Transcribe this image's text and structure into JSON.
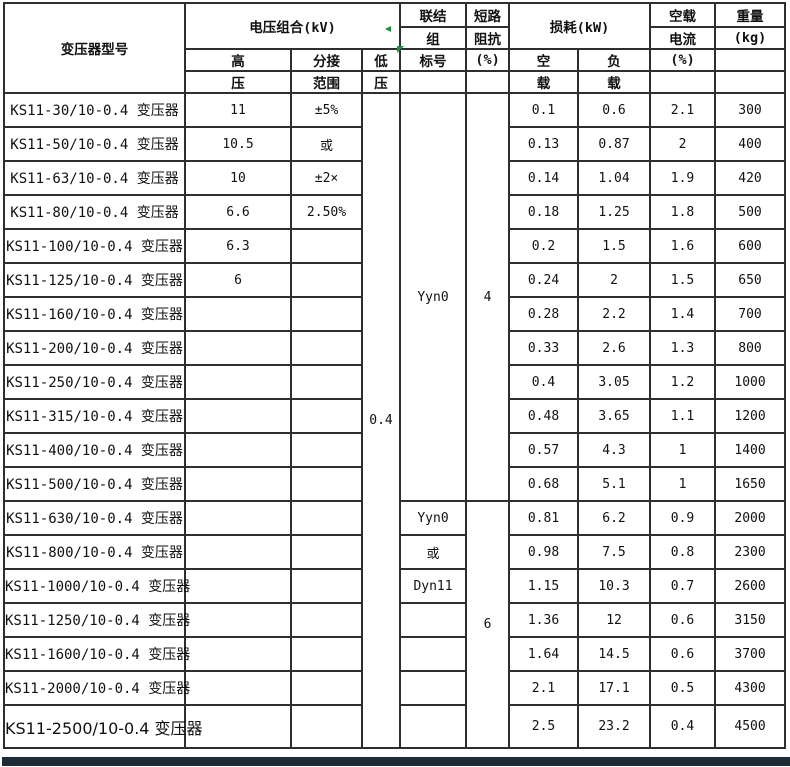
{
  "meta": {
    "border_color": "#2e2e2e",
    "flag_color": "#1e8e3e",
    "bottom_bar_color": "#1d2b36",
    "background_color": "#ffffff"
  },
  "table": {
    "header": {
      "model": "变压器型号",
      "voltage": "电压组合(kV)",
      "hv1": "高",
      "hv2": "压",
      "tap1": "分接",
      "tap2": "范围",
      "lv1": "低",
      "lv2": "压",
      "conn1": "联结",
      "conn2": "组",
      "conn3": "标号",
      "imp1": "短路",
      "imp2": "阻抗",
      "imp3": "(%)",
      "loss": "损耗(kW)",
      "noload1": "空",
      "noload2": "载",
      "load1": "负",
      "load2": "载",
      "cur1": "空载",
      "cur2": "电流",
      "cur3": "(%)",
      "wt1": "重量",
      "wt2": "(kg)"
    },
    "merged": {
      "lv_value": "0.4",
      "conn_top": "Yyn0",
      "imp_top": "4",
      "imp_bottom": "6"
    },
    "rows": [
      {
        "model": "KS11-30/10-0.4 变压器",
        "hv": "11",
        "tap": "±5%",
        "conn": "",
        "noload": "0.1",
        "load": "0.6",
        "current": "2.1",
        "weight": "300"
      },
      {
        "model": "KS11-50/10-0.4 变压器",
        "hv": "10.5",
        "tap": "或",
        "conn": "",
        "noload": "0.13",
        "load": "0.87",
        "current": "2",
        "weight": "400"
      },
      {
        "model": "KS11-63/10-0.4 变压器",
        "hv": "10",
        "tap": "±2×",
        "conn": "",
        "noload": "0.14",
        "load": "1.04",
        "current": "1.9",
        "weight": "420"
      },
      {
        "model": "KS11-80/10-0.4 变压器",
        "hv": "6.6",
        "tap": "2.50%",
        "conn": "",
        "noload": "0.18",
        "load": "1.25",
        "current": "1.8",
        "weight": "500"
      },
      {
        "model": "KS11-100/10-0.4 变压器",
        "hv": "6.3",
        "tap": "",
        "conn": "",
        "noload": "0.2",
        "load": "1.5",
        "current": "1.6",
        "weight": "600"
      },
      {
        "model": "KS11-125/10-0.4 变压器",
        "hv": "6",
        "tap": "",
        "conn": "",
        "noload": "0.24",
        "load": "2",
        "current": "1.5",
        "weight": "650"
      },
      {
        "model": "KS11-160/10-0.4 变压器",
        "hv": "",
        "tap": "",
        "conn": "",
        "noload": "0.28",
        "load": "2.2",
        "current": "1.4",
        "weight": "700"
      },
      {
        "model": "KS11-200/10-0.4 变压器",
        "hv": "",
        "tap": "",
        "conn": "",
        "noload": "0.33",
        "load": "2.6",
        "current": "1.3",
        "weight": "800"
      },
      {
        "model": "KS11-250/10-0.4 变压器",
        "hv": "",
        "tap": "",
        "conn": "",
        "noload": "0.4",
        "load": "3.05",
        "current": "1.2",
        "weight": "1000"
      },
      {
        "model": "KS11-315/10-0.4 变压器",
        "hv": "",
        "tap": "",
        "conn": "",
        "noload": "0.48",
        "load": "3.65",
        "current": "1.1",
        "weight": "1200"
      },
      {
        "model": "KS11-400/10-0.4 变压器",
        "hv": "",
        "tap": "",
        "conn": "",
        "noload": "0.57",
        "load": "4.3",
        "current": "1",
        "weight": "1400"
      },
      {
        "model": "KS11-500/10-0.4 变压器",
        "hv": "",
        "tap": "",
        "conn": "",
        "noload": "0.68",
        "load": "5.1",
        "current": "1",
        "weight": "1650"
      },
      {
        "model": "KS11-630/10-0.4 变压器",
        "hv": "",
        "tap": "",
        "conn": "Yyn0",
        "noload": "0.81",
        "load": "6.2",
        "current": "0.9",
        "weight": "2000"
      },
      {
        "model": "KS11-800/10-0.4 变压器",
        "hv": "",
        "tap": "",
        "conn": "或",
        "noload": "0.98",
        "load": "7.5",
        "current": "0.8",
        "weight": "2300"
      },
      {
        "model": "KS11-1000/10-0.4 变压器",
        "hv": "",
        "tap": "",
        "conn": "Dyn11",
        "noload": "1.15",
        "load": "10.3",
        "current": "0.7",
        "weight": "2600"
      },
      {
        "model": "KS11-1250/10-0.4 变压器",
        "hv": "",
        "tap": "",
        "conn": "",
        "noload": "1.36",
        "load": "12",
        "current": "0.6",
        "weight": "3150"
      },
      {
        "model": "KS11-1600/10-0.4 变压器",
        "hv": "",
        "tap": "",
        "conn": "",
        "noload": "1.64",
        "load": "14.5",
        "current": "0.6",
        "weight": "3700"
      },
      {
        "model": "KS11-2000/10-0.4 变压器",
        "hv": "",
        "tap": "",
        "conn": "",
        "noload": "2.1",
        "load": "17.1",
        "current": "0.5",
        "weight": "4300"
      },
      {
        "model": "KS11-2500/10-0.4 变压器",
        "hv": "",
        "tap": "",
        "conn": "",
        "noload": "2.5",
        "load": "23.2",
        "current": "0.4",
        "weight": "4500"
      }
    ]
  }
}
